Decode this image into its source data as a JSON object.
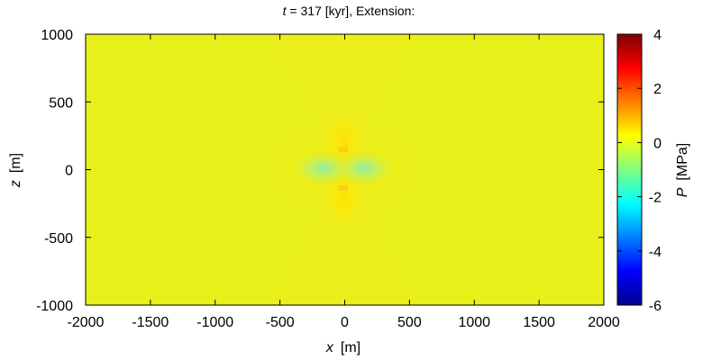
{
  "chart_data": {
    "type": "heatmap",
    "title": {
      "var": "t",
      "rest": " = 317 [kyr], Extension:"
    },
    "xlabel": {
      "var": "x",
      "unit": "[m]"
    },
    "ylabel": {
      "var": "z",
      "unit": "[m]"
    },
    "colorbar_label": {
      "var": "P",
      "unit": "[MPa]"
    },
    "xlim": [
      -2000,
      2000
    ],
    "ylim": [
      -1000,
      1000
    ],
    "clim": [
      -6,
      4
    ],
    "x_ticks": [
      -2000,
      -1500,
      -1000,
      -500,
      0,
      500,
      1000,
      1500,
      2000
    ],
    "y_ticks": [
      -1000,
      -500,
      0,
      500,
      1000
    ],
    "c_ticks": [
      -6,
      -4,
      -2,
      0,
      2,
      4
    ],
    "colormap": "jet",
    "background_value": 0.0,
    "features": [
      {
        "name": "broad-band",
        "x": 0,
        "z": 0,
        "value": 0.3
      },
      {
        "name": "upper-lobe",
        "x": 0,
        "z": 150,
        "value": 0.8
      },
      {
        "name": "lower-lobe",
        "x": 0,
        "z": -150,
        "value": 0.8
      },
      {
        "name": "left-lobe",
        "x": -150,
        "z": 0,
        "value": -1.0
      },
      {
        "name": "right-lobe",
        "x": 150,
        "z": 0,
        "value": -1.0
      }
    ]
  }
}
